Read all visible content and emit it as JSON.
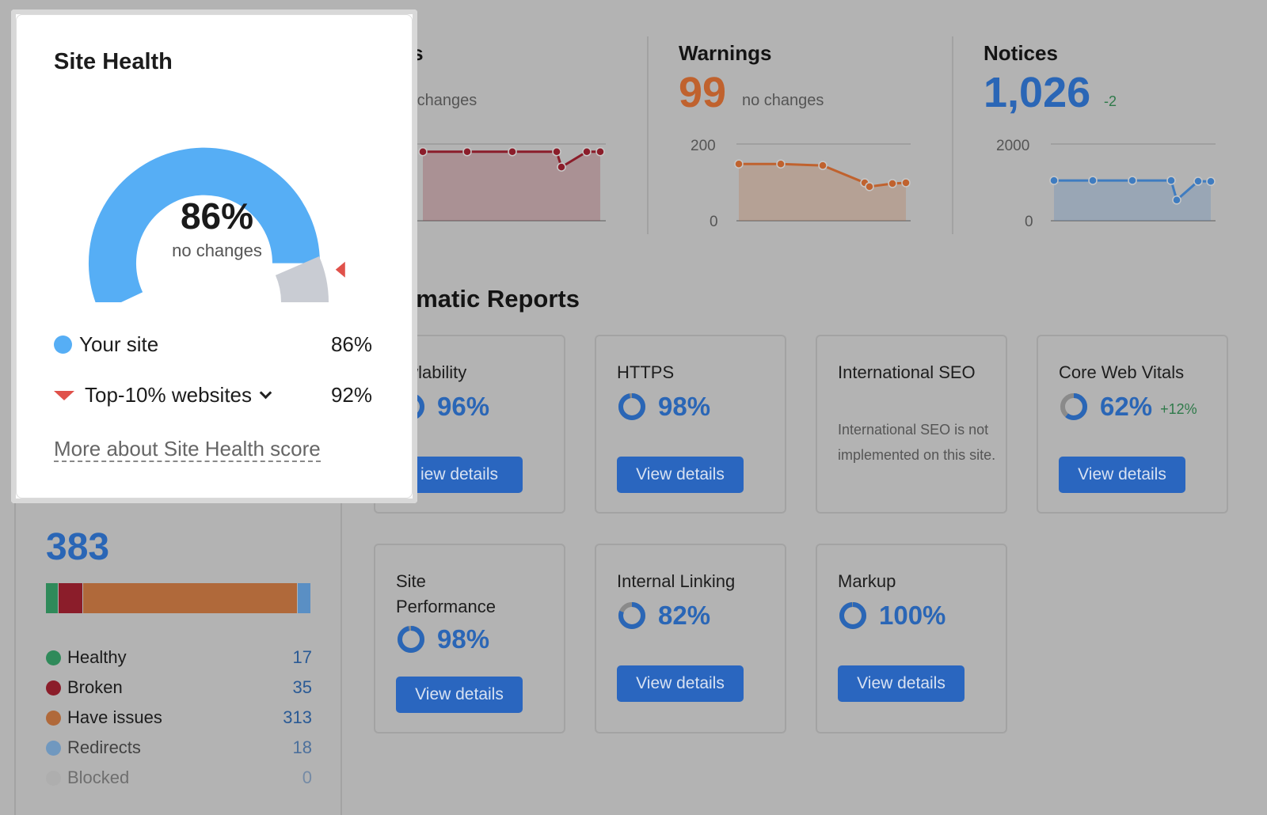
{
  "summary": {
    "errors": {
      "title_partial": "rs",
      "change_partial": "o changes"
    },
    "warnings": {
      "title": "Warnings",
      "value": "99",
      "change": "no changes",
      "color": "#c0622e"
    },
    "notices": {
      "title": "Notices",
      "value": "1,026",
      "change": "-2",
      "color": "#2a66b6"
    }
  },
  "chart_data": [
    {
      "type": "area",
      "series_name": "Errors",
      "color": "#8b1d2a",
      "values": [
        0.9,
        0.9,
        0.9,
        0.9,
        0.7,
        0.9,
        0.9
      ],
      "ylim": [
        0,
        1
      ],
      "x_points": 7
    },
    {
      "type": "area",
      "series_name": "Warnings",
      "color": "#c0622e",
      "values": [
        148,
        148,
        144,
        99,
        89,
        97,
        99
      ],
      "ylim": [
        0,
        200
      ],
      "yticks": [
        "200",
        "0"
      ]
    },
    {
      "type": "area",
      "series_name": "Notices",
      "color": "#3f7cc0",
      "values": [
        1050,
        1050,
        1050,
        1050,
        540,
        1030,
        1026
      ],
      "ylim": [
        0,
        2000
      ],
      "yticks": [
        "2000",
        "0"
      ]
    }
  ],
  "thematic": {
    "title_partial": "ematic Reports",
    "cards": [
      {
        "title": "awlability",
        "pct": "96%",
        "value": 96,
        "button": "iew details"
      },
      {
        "title": "HTTPS",
        "pct": "98%",
        "value": 98,
        "button": "View details"
      },
      {
        "title": "International SEO",
        "description": "International SEO is not implemented on this site."
      },
      {
        "title": "Core Web Vitals",
        "pct": "62%",
        "value": 62,
        "delta": "+12%",
        "button": "View details"
      },
      {
        "title": "Site Performance",
        "pct": "98%",
        "value": 98,
        "button": "View details"
      },
      {
        "title": "Internal Linking",
        "pct": "82%",
        "value": 82,
        "button": "View details"
      },
      {
        "title": "Markup",
        "pct": "100%",
        "value": 100,
        "button": "View details"
      }
    ]
  },
  "crawled": {
    "total": "383",
    "items": [
      {
        "label": "Healthy",
        "value": "17",
        "count": 17,
        "color": "#2f8a5a"
      },
      {
        "label": "Broken",
        "value": "35",
        "count": 35,
        "color": "#8b1d2a"
      },
      {
        "label": "Have issues",
        "value": "313",
        "count": 313,
        "color": "#b0693a"
      },
      {
        "label": "Redirects",
        "value": "18",
        "count": 18,
        "color": "#5a8fc4"
      },
      {
        "label": "Blocked",
        "value": "0",
        "count": 0,
        "color": "#a9a9a9"
      }
    ]
  },
  "site_health": {
    "title": "Site Health",
    "score": "86%",
    "score_value": 86,
    "change": "no changes",
    "your_site_label": "Your site",
    "your_site_value": "86%",
    "top_label": "Top-10% websites",
    "top_value": "92%",
    "top_score": 92,
    "more_link": "More about Site Health score",
    "your_color": "#56aef5",
    "top_color": "#e0514a"
  }
}
